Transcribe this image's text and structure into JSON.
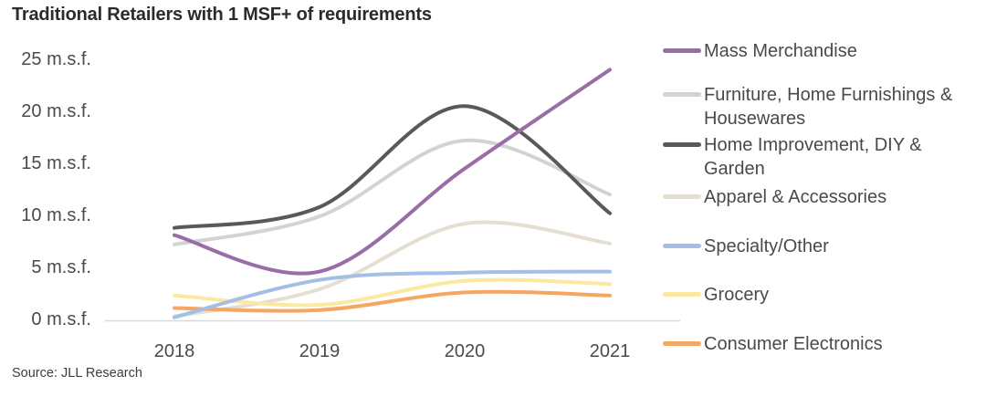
{
  "title": "Traditional Retailers with 1 MSF+ of requirements",
  "source": "Source: JLL Research",
  "colors": {
    "axis_line": "#d9d9d9",
    "tick_text": "#4a4a4a",
    "title_text": "#2b2b2b"
  },
  "chart_data": {
    "type": "line",
    "title": "Traditional Retailers with 1 MSF+ of requirements",
    "xlabel": "",
    "ylabel": "m.s.f.",
    "ylim": [
      0,
      25
    ],
    "grid": false,
    "legend_position": "right",
    "categories": [
      "2018",
      "2019",
      "2020",
      "2021"
    ],
    "y_ticks": [
      {
        "label": "25 m.s.f.",
        "value": 25
      },
      {
        "label": "20 m.s.f.",
        "value": 20
      },
      {
        "label": "15 m.s.f.",
        "value": 15
      },
      {
        "label": "10 m.s.f.",
        "value": 10
      },
      {
        "label": "5 m.s.f.",
        "value": 5
      },
      {
        "label": "0 m.s.f.",
        "value": 0
      }
    ],
    "series": [
      {
        "name": "Mass Merchandise",
        "color": "#9a6da6",
        "values": [
          8.1,
          4.6,
          14.5,
          24.0
        ]
      },
      {
        "name": "Furniture, Home Furnishings & Housewares",
        "color": "#d3d3d4",
        "values": [
          7.2,
          9.9,
          17.2,
          12.0
        ]
      },
      {
        "name": "Home Improvement, DIY & Garden",
        "color": "#58595b",
        "values": [
          8.8,
          10.8,
          20.5,
          10.2
        ]
      },
      {
        "name": "Apparel & Accessories",
        "color": "#e5dfd2",
        "values": [
          0.3,
          2.9,
          9.2,
          7.3
        ]
      },
      {
        "name": "Specialty/Other",
        "color": "#a5bee5",
        "values": [
          0.2,
          3.8,
          4.5,
          4.6
        ]
      },
      {
        "name": "Grocery",
        "color": "#fce9a1",
        "values": [
          2.3,
          1.4,
          3.7,
          3.4
        ]
      },
      {
        "name": "Consumer Electronics",
        "color": "#f4a763",
        "values": [
          1.1,
          0.9,
          2.6,
          2.3
        ]
      }
    ],
    "z_order": [
      3,
      5,
      6,
      4,
      1,
      2,
      0
    ]
  }
}
